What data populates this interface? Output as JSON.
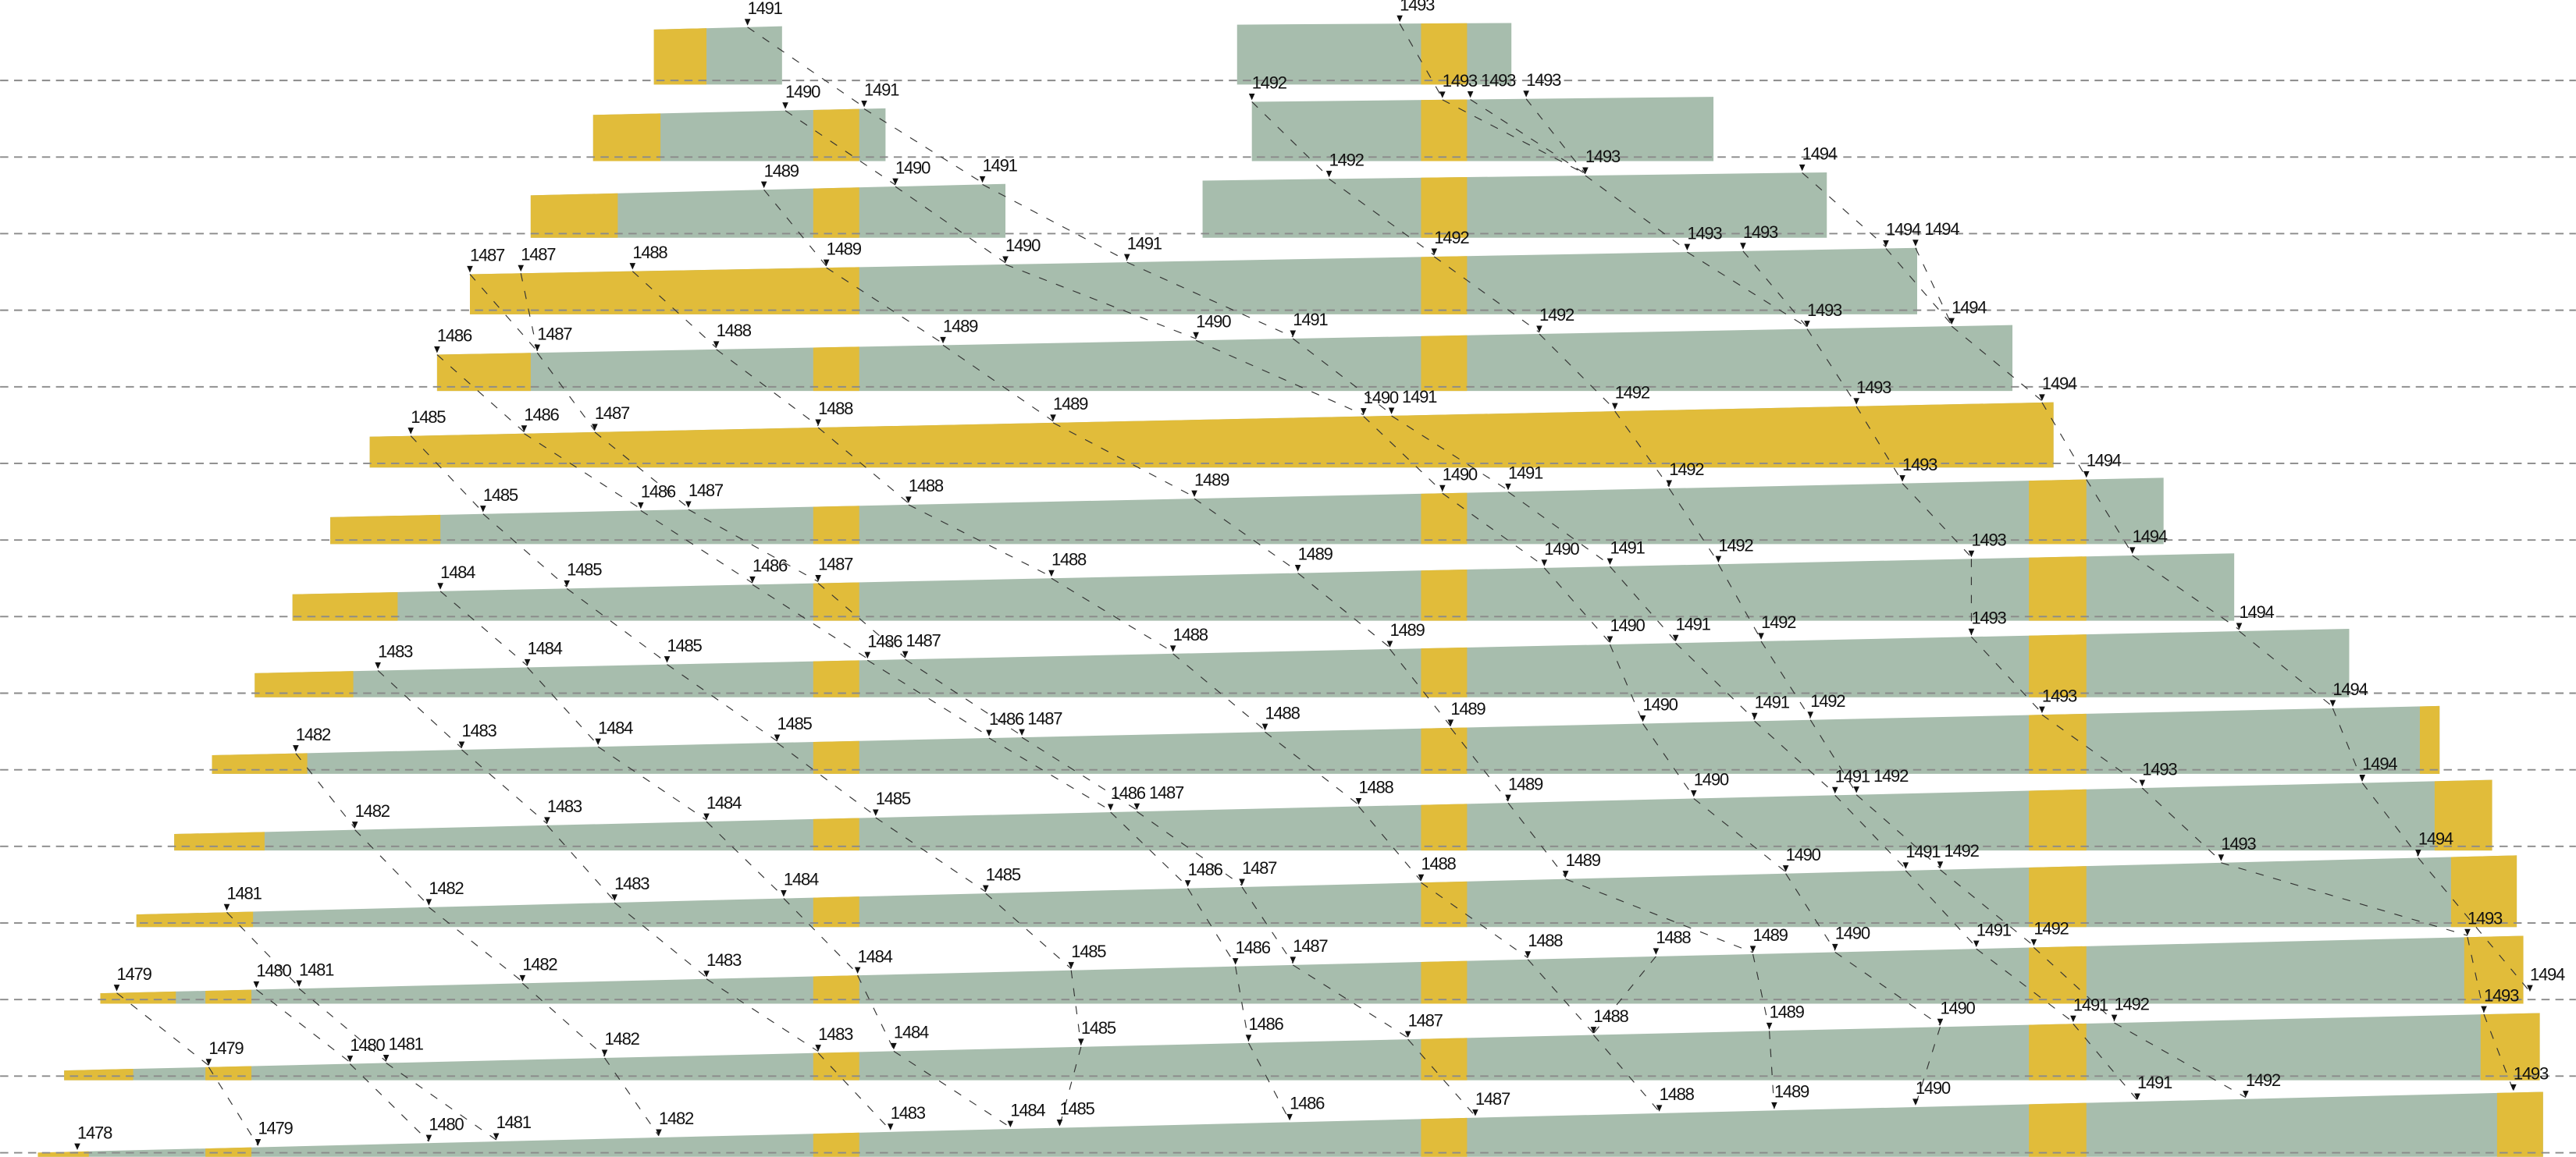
{
  "colors": {
    "yellow": "#E1BC3A",
    "green": "#A7BDAD",
    "baseline": "#8a8a8a",
    "text": "#111111"
  },
  "rows": [
    {
      "markers": [
        "1491",
        "1493"
      ]
    },
    {
      "markers": [
        "1490",
        "1491",
        "1492",
        "1493",
        "1493",
        "1493"
      ]
    },
    {
      "markers": [
        "1489",
        "1490",
        "1491",
        "1492",
        "1493",
        "1494"
      ]
    },
    {
      "markers": [
        "1487",
        "1487",
        "1488",
        "1489",
        "1490",
        "1491",
        "1492",
        "1493",
        "1493",
        "1494",
        "1494"
      ]
    },
    {
      "markers": [
        "1486",
        "1487",
        "1488",
        "1489",
        "1490",
        "1491",
        "1492",
        "1493",
        "1494"
      ]
    },
    {
      "markers": [
        "1485",
        "1486",
        "1487",
        "1488",
        "1489",
        "1490",
        "1491",
        "1492",
        "1493",
        "1494"
      ]
    },
    {
      "markers": [
        "1485",
        "1486",
        "1487",
        "1488",
        "1489",
        "1490",
        "1491",
        "1492",
        "1493",
        "1494"
      ]
    },
    {
      "markers": [
        "1484",
        "1485",
        "1486",
        "1487",
        "1488",
        "1489",
        "1490",
        "1491",
        "1492",
        "1493",
        "1494"
      ]
    },
    {
      "markers": [
        "1483",
        "1484",
        "1485",
        "1486",
        "1487",
        "1488",
        "1489",
        "1490",
        "1491",
        "1492",
        "1493",
        "1494"
      ]
    },
    {
      "markers": [
        "1482",
        "1483",
        "1484",
        "1485",
        "1486",
        "1487",
        "1488",
        "1489",
        "1490",
        "1491",
        "1492",
        "1493",
        "1494"
      ]
    },
    {
      "markers": [
        "1482",
        "1483",
        "1484",
        "1485",
        "1486",
        "1487",
        "1488",
        "1489",
        "1490",
        "1491",
        "1492",
        "1493",
        "1494"
      ]
    },
    {
      "markers": [
        "1481",
        "1482",
        "1483",
        "1484",
        "1485",
        "1486",
        "1487",
        "1488",
        "1489",
        "1490",
        "1491",
        "1492",
        "1493",
        "1494"
      ]
    },
    {
      "markers": [
        "1479",
        "1480",
        "1481",
        "1482",
        "1483",
        "1484",
        "1485",
        "1486",
        "1487",
        "1488",
        "1488",
        "1489",
        "1490",
        "1491",
        "1492",
        "1493",
        "1494"
      ]
    },
    {
      "markers": [
        "1479",
        "1480",
        "1481",
        "1482",
        "1483",
        "1484",
        "1485",
        "1486",
        "1487",
        "1488",
        "1489",
        "1490",
        "1491",
        "1492",
        "1493"
      ]
    },
    {
      "markers": [
        "1478",
        "1479",
        "1480",
        "1481",
        "1482",
        "1483",
        "1484",
        "1485",
        "1486",
        "1487",
        "1488",
        "1489",
        "1490",
        "1491",
        "1492",
        "1493"
      ]
    }
  ]
}
